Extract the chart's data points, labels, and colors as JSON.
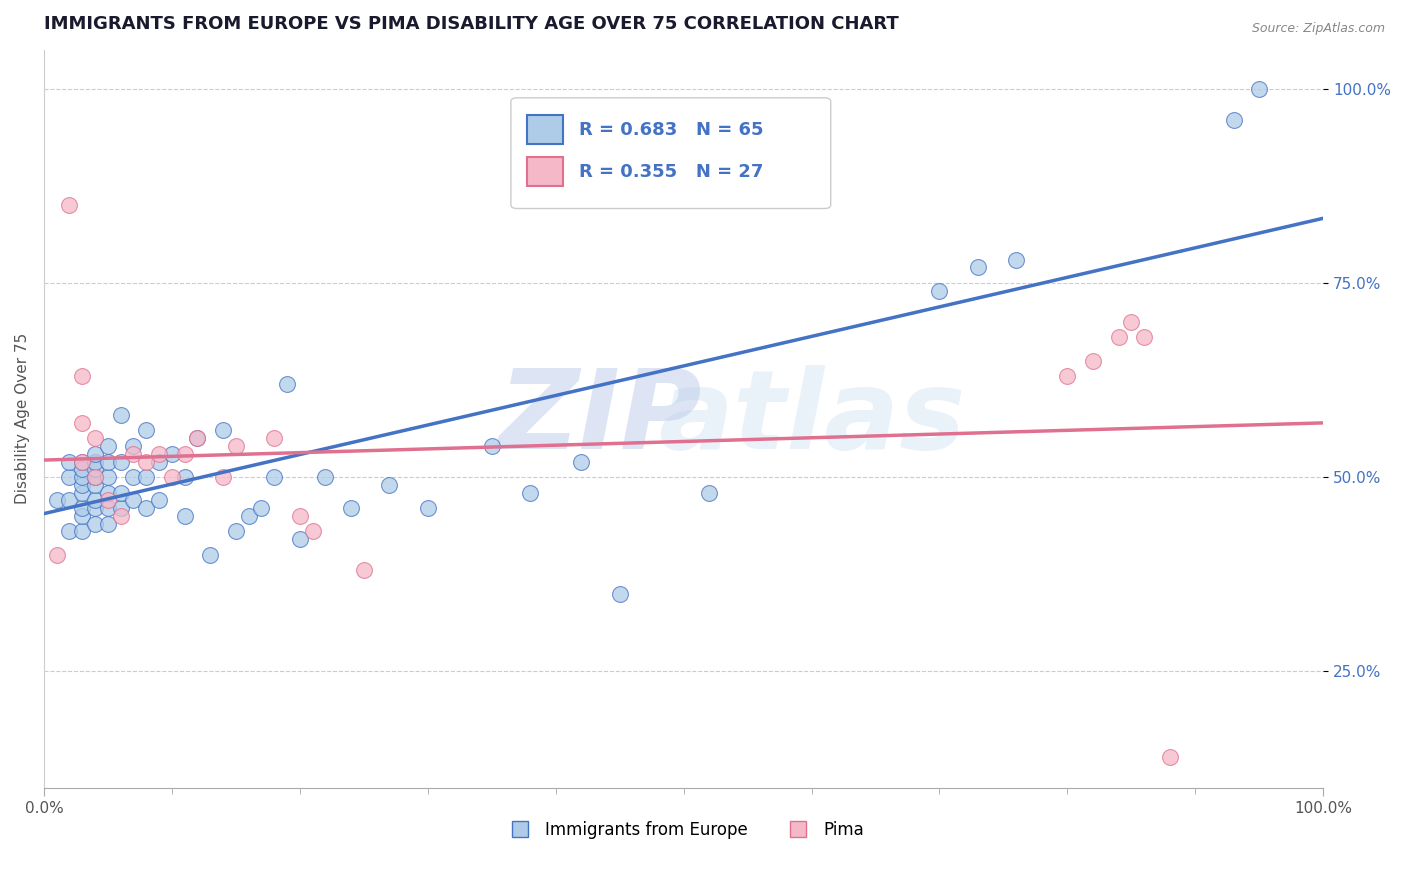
{
  "title": "IMMIGRANTS FROM EUROPE VS PIMA DISABILITY AGE OVER 75 CORRELATION CHART",
  "source": "Source: ZipAtlas.com",
  "ylabel": "Disability Age Over 75",
  "legend_blue_label": "Immigrants from Europe",
  "legend_pink_label": "Pima",
  "blue_r": "R = 0.683",
  "blue_n": "N = 65",
  "pink_r": "R = 0.355",
  "pink_n": "N = 27",
  "blue_color": "#aecce8",
  "blue_line_color": "#4472c4",
  "pink_color": "#f4b8c8",
  "pink_line_color": "#e07090",
  "bg_color": "#ffffff",
  "grid_color": "#cccccc",
  "title_color": "#1a1a2e",
  "xlim": [
    0,
    1
  ],
  "ylim": [
    0.1,
    1.05
  ],
  "blue_x": [
    0.01,
    0.02,
    0.02,
    0.02,
    0.02,
    0.03,
    0.03,
    0.03,
    0.03,
    0.03,
    0.03,
    0.03,
    0.03,
    0.04,
    0.04,
    0.04,
    0.04,
    0.04,
    0.04,
    0.04,
    0.04,
    0.05,
    0.05,
    0.05,
    0.05,
    0.05,
    0.05,
    0.06,
    0.06,
    0.06,
    0.06,
    0.07,
    0.07,
    0.07,
    0.08,
    0.08,
    0.08,
    0.09,
    0.09,
    0.1,
    0.11,
    0.11,
    0.12,
    0.13,
    0.14,
    0.15,
    0.16,
    0.17,
    0.18,
    0.19,
    0.2,
    0.22,
    0.24,
    0.27,
    0.3,
    0.35,
    0.38,
    0.42,
    0.45,
    0.52,
    0.7,
    0.73,
    0.76,
    0.93,
    0.95
  ],
  "blue_y": [
    0.47,
    0.43,
    0.47,
    0.5,
    0.52,
    0.43,
    0.45,
    0.46,
    0.48,
    0.49,
    0.5,
    0.51,
    0.52,
    0.44,
    0.46,
    0.47,
    0.49,
    0.5,
    0.51,
    0.52,
    0.53,
    0.44,
    0.46,
    0.48,
    0.5,
    0.52,
    0.54,
    0.46,
    0.48,
    0.52,
    0.58,
    0.47,
    0.5,
    0.54,
    0.46,
    0.5,
    0.56,
    0.47,
    0.52,
    0.53,
    0.45,
    0.5,
    0.55,
    0.4,
    0.56,
    0.43,
    0.45,
    0.46,
    0.5,
    0.62,
    0.42,
    0.5,
    0.46,
    0.49,
    0.46,
    0.54,
    0.48,
    0.52,
    0.35,
    0.48,
    0.74,
    0.77,
    0.78,
    0.96,
    1.0
  ],
  "pink_x": [
    0.01,
    0.02,
    0.03,
    0.03,
    0.03,
    0.04,
    0.04,
    0.05,
    0.06,
    0.07,
    0.08,
    0.09,
    0.1,
    0.11,
    0.12,
    0.14,
    0.15,
    0.18,
    0.2,
    0.21,
    0.25,
    0.8,
    0.82,
    0.84,
    0.85,
    0.86,
    0.88
  ],
  "pink_y": [
    0.4,
    0.85,
    0.52,
    0.57,
    0.63,
    0.5,
    0.55,
    0.47,
    0.45,
    0.53,
    0.52,
    0.53,
    0.5,
    0.53,
    0.55,
    0.5,
    0.54,
    0.55,
    0.45,
    0.43,
    0.38,
    0.63,
    0.65,
    0.68,
    0.7,
    0.68,
    0.14
  ]
}
